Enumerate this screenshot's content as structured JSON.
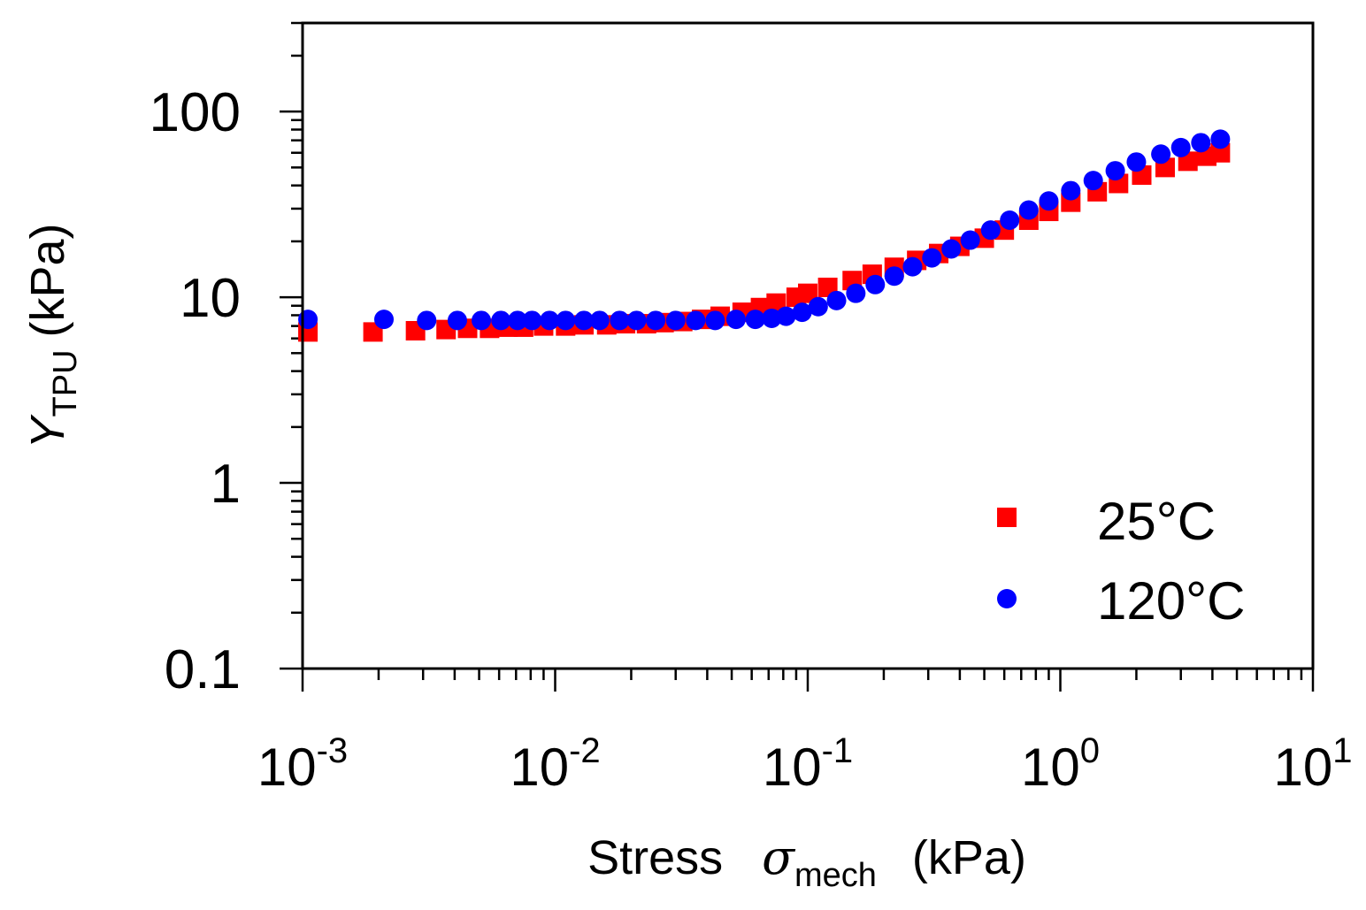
{
  "chart_data": {
    "type": "scatter",
    "title": "",
    "xscale": "log",
    "yscale": "log",
    "xlim": [
      0.001,
      10
    ],
    "ylim": [
      0.1,
      300
    ],
    "xlabel": {
      "main": "Stress",
      "symbol": "σ",
      "sub": "mech",
      "unit": "(kPa)"
    },
    "ylabel": {
      "main": "Y",
      "sub": "TPU",
      "unit": "(kPa)"
    },
    "x_ticks": [
      {
        "value": 0.001,
        "base": "10",
        "exp": "-3"
      },
      {
        "value": 0.01,
        "base": "10",
        "exp": "-2"
      },
      {
        "value": 0.1,
        "base": "10",
        "exp": "-1"
      },
      {
        "value": 1,
        "base": "10",
        "exp": "0"
      },
      {
        "value": 10,
        "base": "10",
        "exp": "1"
      }
    ],
    "y_ticks": [
      {
        "value": 0.1,
        "label": "0.1"
      },
      {
        "value": 1,
        "label": "1"
      },
      {
        "value": 10,
        "label": "10"
      },
      {
        "value": 100,
        "label": "100"
      }
    ],
    "legend_position": "bottom-right",
    "series": [
      {
        "name": "25°C",
        "marker": "square",
        "color": "#ff0000",
        "x": [
          0.00105,
          0.0019,
          0.0028,
          0.0037,
          0.0045,
          0.0055,
          0.0065,
          0.0075,
          0.009,
          0.011,
          0.013,
          0.016,
          0.019,
          0.023,
          0.027,
          0.032,
          0.038,
          0.045,
          0.055,
          0.065,
          0.075,
          0.09,
          0.1,
          0.12,
          0.15,
          0.18,
          0.22,
          0.27,
          0.33,
          0.4,
          0.5,
          0.6,
          0.75,
          0.9,
          1.1,
          1.4,
          1.7,
          2.1,
          2.6,
          3.2,
          3.8,
          4.3
        ],
        "y": [
          6.5,
          6.5,
          6.6,
          6.7,
          6.8,
          6.8,
          6.9,
          6.9,
          7.0,
          7.0,
          7.1,
          7.1,
          7.2,
          7.2,
          7.3,
          7.4,
          7.6,
          7.9,
          8.3,
          8.8,
          9.3,
          10.0,
          10.5,
          11.3,
          12.3,
          13.3,
          14.5,
          15.8,
          17.2,
          18.8,
          20.8,
          23.0,
          26.0,
          29.0,
          32.5,
          37.0,
          41.0,
          45.5,
          50.0,
          54.0,
          57.5,
          60.0
        ]
      },
      {
        "name": "120°C",
        "marker": "circle",
        "color": "#0000ff",
        "x": [
          0.00105,
          0.0021,
          0.0031,
          0.0041,
          0.0051,
          0.0061,
          0.0071,
          0.0081,
          0.0095,
          0.011,
          0.013,
          0.015,
          0.018,
          0.021,
          0.025,
          0.03,
          0.036,
          0.043,
          0.052,
          0.062,
          0.072,
          0.082,
          0.095,
          0.11,
          0.13,
          0.155,
          0.185,
          0.22,
          0.26,
          0.31,
          0.37,
          0.44,
          0.53,
          0.63,
          0.75,
          0.9,
          1.1,
          1.35,
          1.65,
          2.0,
          2.5,
          3.0,
          3.6,
          4.3
        ],
        "y": [
          7.6,
          7.6,
          7.5,
          7.5,
          7.5,
          7.5,
          7.5,
          7.5,
          7.5,
          7.5,
          7.5,
          7.5,
          7.5,
          7.5,
          7.5,
          7.5,
          7.5,
          7.5,
          7.6,
          7.6,
          7.7,
          7.9,
          8.3,
          8.9,
          9.6,
          10.5,
          11.7,
          13.0,
          14.6,
          16.3,
          18.2,
          20.3,
          23.0,
          26.0,
          29.5,
          33.0,
          37.5,
          42.5,
          48.0,
          53.5,
          59.0,
          64.0,
          68.0,
          71.0
        ]
      }
    ]
  }
}
